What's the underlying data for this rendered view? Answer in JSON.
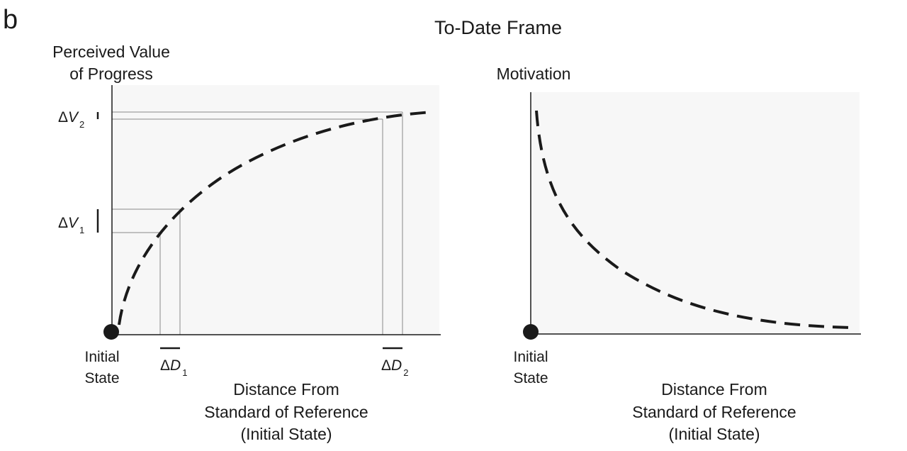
{
  "panel_letter": "b",
  "title": "To-Date Frame",
  "left_panel": {
    "y_label_line1": "Perceived Value",
    "y_label_line2": "of Progress",
    "origin_label_line1": "Initial",
    "origin_label_line2": "State",
    "x_label_line1": "Distance From",
    "x_label_line2": "Standard of Reference",
    "x_label_line3": "(Initial State)",
    "dv1_delta": "Δ",
    "dv1_var": "V",
    "dv1_sub": "1",
    "dv2_delta": "Δ",
    "dv2_var": "V",
    "dv2_sub": "2",
    "dd1_delta": "Δ",
    "dd1_var": "D",
    "dd1_sub": "1",
    "dd2_delta": "Δ",
    "dd2_var": "D",
    "dd2_sub": "2"
  },
  "right_panel": {
    "y_label": "Motivation",
    "origin_label_line1": "Initial",
    "origin_label_line2": "State",
    "x_label_line1": "Distance From",
    "x_label_line2": "Standard of Reference",
    "x_label_line3": "(Initial State)"
  },
  "colors": {
    "ink": "#1a1a1a",
    "guide": "#8a8a8a",
    "panel_bg": "#f7f7f7"
  }
}
